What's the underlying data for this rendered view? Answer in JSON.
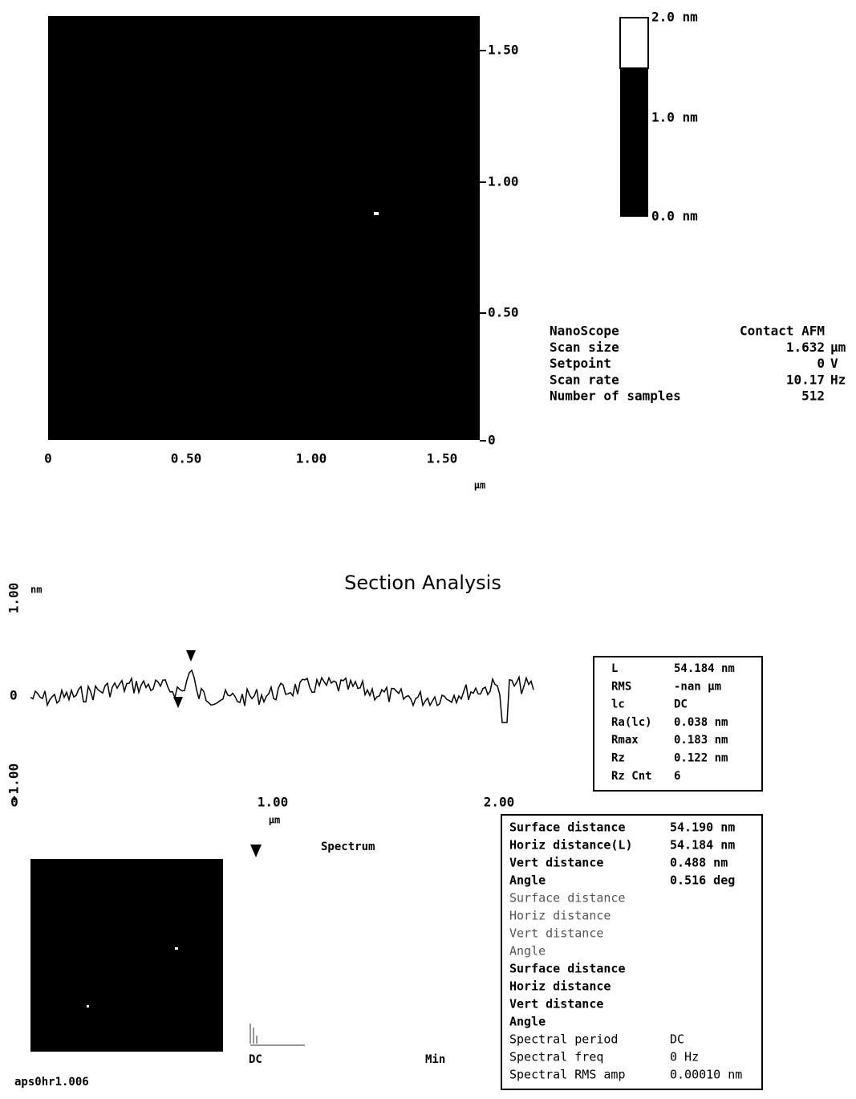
{
  "image": {
    "y_ticks": [
      "1.50",
      "1.00",
      "0.50",
      "0"
    ],
    "x_ticks": [
      "0",
      "0.50",
      "1.00",
      "1.50"
    ],
    "x_unit": "µm"
  },
  "color_bar": {
    "labels": [
      "2.0 nm",
      "1.0 nm",
      "0.0 nm"
    ]
  },
  "info": [
    {
      "label": "NanoScope",
      "value": "Contact AFM"
    },
    {
      "label": "Scan size",
      "value": "1.632",
      "unit": "µm"
    },
    {
      "label": "Setpoint",
      "value": "0",
      "unit": "V"
    },
    {
      "label": "Scan rate",
      "value": "10.17",
      "unit": "Hz"
    },
    {
      "label": "Number of samples",
      "value": "512"
    }
  ],
  "section": {
    "title": "Section Analysis",
    "y_ticks": [
      "1.00",
      "0",
      "-1.00"
    ],
    "y_unit": "nm",
    "x_ticks": [
      "0",
      "1.00",
      "2.00"
    ],
    "x_unit": "µm"
  },
  "roughness": [
    [
      "L",
      "54.184 nm"
    ],
    [
      "RMS",
      "-nan µm"
    ],
    [
      "lc",
      "DC"
    ],
    [
      "Ra(lc)",
      "0.038 nm"
    ],
    [
      "Rmax",
      "0.183 nm"
    ],
    [
      "Rz",
      "0.122 nm"
    ],
    [
      "Rz Cnt",
      "6"
    ]
  ],
  "spectrum": {
    "title": "Spectrum",
    "left": "DC",
    "right": "Min"
  },
  "measurements": [
    {
      "label": "Surface distance",
      "value": "54.190 nm",
      "style": "bold"
    },
    {
      "label": "Horiz distance(L)",
      "value": "54.184 nm",
      "style": "bold"
    },
    {
      "label": "Vert distance",
      "value": "0.488 nm",
      "style": "bold"
    },
    {
      "label": "Angle",
      "value": "0.516 deg",
      "style": "bold"
    },
    {
      "label": "Surface distance",
      "style": "light"
    },
    {
      "label": "Horiz distance",
      "style": "light"
    },
    {
      "label": "Vert distance",
      "style": "light"
    },
    {
      "label": "Angle",
      "style": "light"
    },
    {
      "label": "Surface distance",
      "style": "bold"
    },
    {
      "label": "Horiz distance",
      "style": "bold"
    },
    {
      "label": "Vert distance",
      "style": "bold"
    },
    {
      "label": "Angle",
      "style": "bold"
    },
    {
      "label": "Spectral period",
      "value": "DC",
      "style": "normal"
    },
    {
      "label": "Spectral freq",
      "value": "0 Hz",
      "style": "normal"
    },
    {
      "label": "Spectral RMS amp",
      "value": "0.00010 nm",
      "style": "normal"
    }
  ],
  "file": "aps0hr1.006"
}
